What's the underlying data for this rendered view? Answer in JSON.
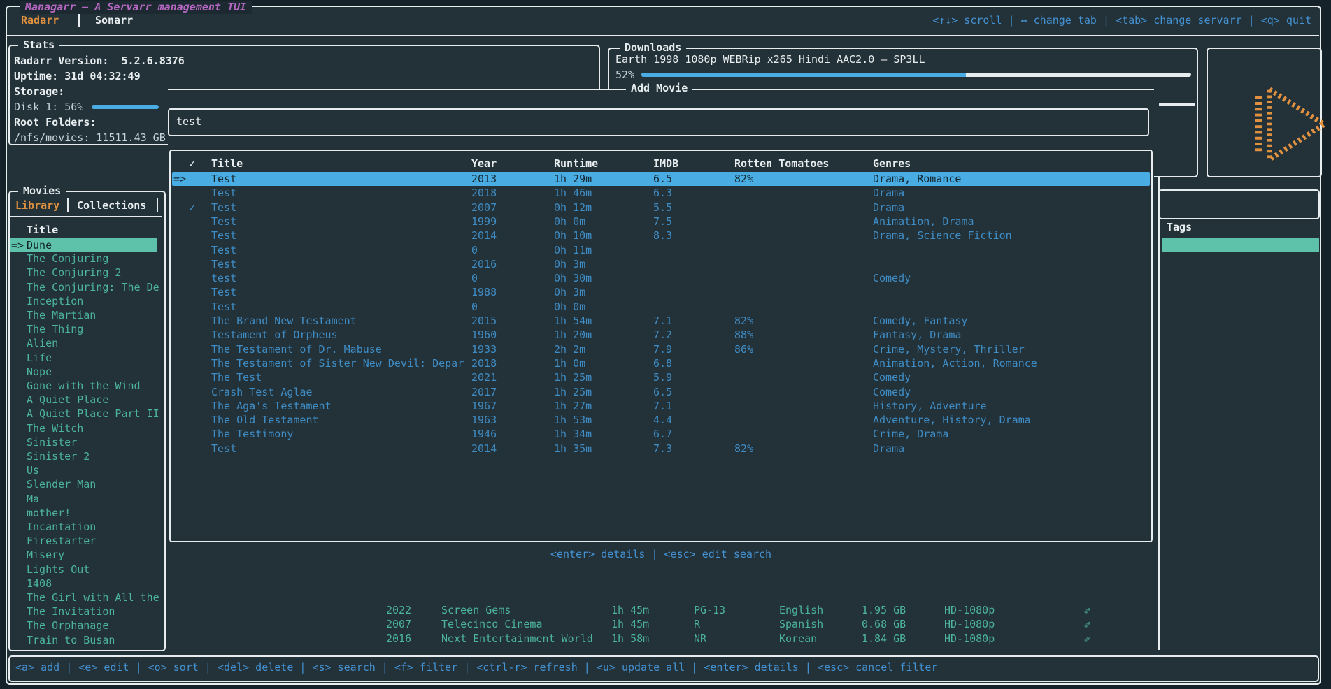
{
  "colors": {
    "app_bg": "#233139",
    "page_bg": "#16222a",
    "border_white": "#e7edef",
    "accent_orange": "#e0913f",
    "accent_blue": "#4492d2",
    "table_blue": "#3f8dc5",
    "accent_teal": "#4cb49e",
    "selection_blue": "#49ade3",
    "selection_teal": "#5ec2ab",
    "title_purple": "#b667c2"
  },
  "titlebar": {
    "app_title": "Managarr — A Servarr management TUI",
    "tabs": [
      {
        "label": "Radarr"
      },
      {
        "label": "Sonarr"
      }
    ],
    "hints": "<↑↓> scroll | ↔ change tab | <tab> change servarr | <q> quit"
  },
  "stats": {
    "panel_title": "Stats",
    "version_line": "Radarr Version:  5.2.6.8376",
    "uptime_line": "Uptime: 31d 04:32:49",
    "storage_label": "Storage:",
    "disk_line": "Disk 1: 56%",
    "disk_percent": "56%",
    "root_folders_label": "Root Folders:",
    "root_folder_line": "/nfs/movies: 11511.43 GB"
  },
  "downloads": {
    "panel_title": "Downloads",
    "item_title": "Earth 1998 1080p WEBRip x265 Hindi AAC2.0 – SP3LL",
    "progress_percent": "52%"
  },
  "movies": {
    "panel_title": "Movies",
    "tabs": [
      "Library",
      "Collections"
    ],
    "column_header": "Title",
    "selected_prefix": "=>",
    "selected_item": "Dune",
    "items": [
      "The Conjuring",
      "The Conjuring 2",
      "The Conjuring: The De",
      "Inception",
      "The Martian",
      "The Thing",
      "Alien",
      "Life",
      "Nope",
      "Gone with the Wind",
      "A Quiet Place",
      "A Quiet Place Part II",
      "The Witch",
      "Sinister",
      "Sinister 2",
      "Us",
      "Slender Man",
      "Ma",
      "mother!",
      "Incantation",
      "Firestarter",
      "Misery",
      "Lights Out",
      "1408",
      "The Girl with All the",
      "The Invitation",
      "The Orphanage",
      "Train to Busan"
    ]
  },
  "add_movie": {
    "modal_title": "Add Movie",
    "search_value": "test",
    "selected_prefix": "=>",
    "check_glyph": "✓",
    "columns": [
      "✓",
      "Title",
      "Year",
      "Runtime",
      "IMDB",
      "Rotten Tomatoes",
      "Genres"
    ],
    "rows": [
      {
        "selected": true,
        "checked": false,
        "title": "Test",
        "year": "2013",
        "runtime": "1h 29m",
        "imdb": "6.5",
        "rt": "82%",
        "genres": "Drama, Romance"
      },
      {
        "selected": false,
        "checked": false,
        "title": "Test",
        "year": "2018",
        "runtime": "1h 46m",
        "imdb": "6.3",
        "rt": "",
        "genres": "Drama"
      },
      {
        "selected": false,
        "checked": true,
        "title": "Test",
        "year": "2007",
        "runtime": "0h 12m",
        "imdb": "5.5",
        "rt": "",
        "genres": "Drama"
      },
      {
        "selected": false,
        "checked": false,
        "title": "Test",
        "year": "1999",
        "runtime": "0h 0m",
        "imdb": "7.5",
        "rt": "",
        "genres": "Animation, Drama"
      },
      {
        "selected": false,
        "checked": false,
        "title": "Test",
        "year": "2014",
        "runtime": "0h 10m",
        "imdb": "8.3",
        "rt": "",
        "genres": "Drama, Science Fiction"
      },
      {
        "selected": false,
        "checked": false,
        "title": "Test",
        "year": "0",
        "runtime": "0h 11m",
        "imdb": "",
        "rt": "",
        "genres": ""
      },
      {
        "selected": false,
        "checked": false,
        "title": "Test",
        "year": "2016",
        "runtime": "0h 3m",
        "imdb": "",
        "rt": "",
        "genres": ""
      },
      {
        "selected": false,
        "checked": false,
        "title": "test",
        "year": "0",
        "runtime": "0h 30m",
        "imdb": "",
        "rt": "",
        "genres": "Comedy"
      },
      {
        "selected": false,
        "checked": false,
        "title": "Test",
        "year": "1988",
        "runtime": "0h 3m",
        "imdb": "",
        "rt": "",
        "genres": ""
      },
      {
        "selected": false,
        "checked": false,
        "title": "Test",
        "year": "0",
        "runtime": "0h 0m",
        "imdb": "",
        "rt": "",
        "genres": ""
      },
      {
        "selected": false,
        "checked": false,
        "title": "The Brand New Testament",
        "year": "2015",
        "runtime": "1h 54m",
        "imdb": "7.1",
        "rt": "82%",
        "genres": "Comedy, Fantasy"
      },
      {
        "selected": false,
        "checked": false,
        "title": "Testament of Orpheus",
        "year": "1960",
        "runtime": "1h 20m",
        "imdb": "7.2",
        "rt": "88%",
        "genres": "Fantasy, Drama"
      },
      {
        "selected": false,
        "checked": false,
        "title": "The Testament of Dr. Mabuse",
        "year": "1933",
        "runtime": "2h 2m",
        "imdb": "7.9",
        "rt": "86%",
        "genres": "Crime, Mystery, Thriller"
      },
      {
        "selected": false,
        "checked": false,
        "title": "The Testament of Sister New Devil: Depar",
        "year": "2018",
        "runtime": "1h 0m",
        "imdb": "6.8",
        "rt": "",
        "genres": "Animation, Action, Romance"
      },
      {
        "selected": false,
        "checked": false,
        "title": "The Test",
        "year": "2021",
        "runtime": "1h 25m",
        "imdb": "5.9",
        "rt": "",
        "genres": "Comedy"
      },
      {
        "selected": false,
        "checked": false,
        "title": "Crash Test Aglae",
        "year": "2017",
        "runtime": "1h 25m",
        "imdb": "6.5",
        "rt": "",
        "genres": "Comedy"
      },
      {
        "selected": false,
        "checked": false,
        "title": "The Aga's Testament",
        "year": "1967",
        "runtime": "1h 27m",
        "imdb": "7.1",
        "rt": "",
        "genres": "History, Adventure"
      },
      {
        "selected": false,
        "checked": false,
        "title": "The Old Testament",
        "year": "1963",
        "runtime": "1h 53m",
        "imdb": "4.4",
        "rt": "",
        "genres": "Adventure, History, Drama"
      },
      {
        "selected": false,
        "checked": false,
        "title": "The Testimony",
        "year": "1946",
        "runtime": "1h 34m",
        "imdb": "6.7",
        "rt": "",
        "genres": "Crime, Drama"
      },
      {
        "selected": false,
        "checked": false,
        "title": "Test",
        "year": "2014",
        "runtime": "1h 35m",
        "imdb": "7.3",
        "rt": "82%",
        "genres": "Drama"
      }
    ],
    "footer_hints": "<enter> details | <esc> edit search"
  },
  "details_panel": {
    "tags_label": "Tags"
  },
  "background_rows": [
    {
      "year": "2022",
      "studio": "Screen Gems",
      "runtime": "1h 45m",
      "rating": "PG-13",
      "language": "English",
      "size": "1.95 GB",
      "quality": "HD-1080p"
    },
    {
      "year": "2007",
      "studio": "Telecinco Cinema",
      "runtime": "1h 45m",
      "rating": "R",
      "language": "Spanish",
      "size": "0.68 GB",
      "quality": "HD-1080p"
    },
    {
      "year": "2016",
      "studio": "Next Entertainment World",
      "runtime": "1h 58m",
      "rating": "NR",
      "language": "Korean",
      "size": "1.84 GB",
      "quality": "HD-1080p"
    }
  ],
  "edit_icon": "✎",
  "keybar": {
    "hints": "<a> add | <e> edit | <o> sort | <del> delete | <s> search | <f> filter | <ctrl-r> refresh | <u> update all | <enter> details | <esc> cancel filter"
  }
}
